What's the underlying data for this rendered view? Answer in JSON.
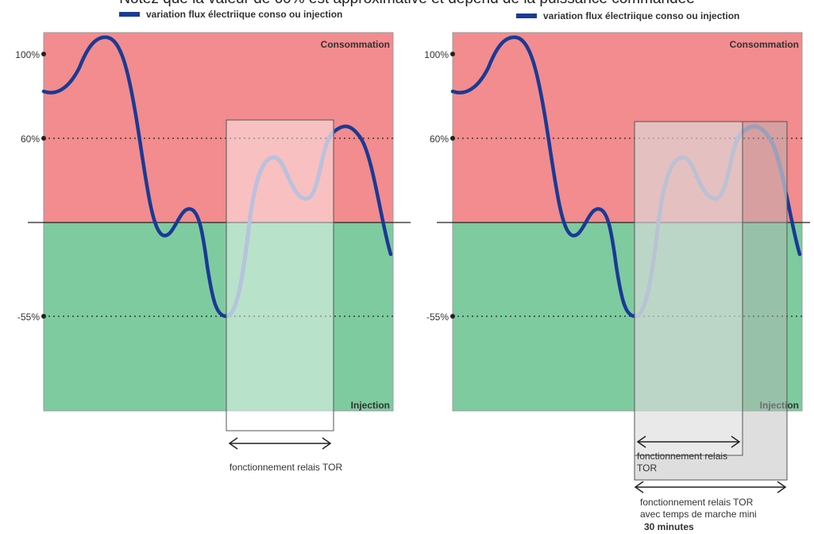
{
  "top_text": "Notez que la valeur de 60% est approximative et dépend de la puissance commandée",
  "legend_label": "variation flux électriique conso ou injection",
  "zone_consumption": "Consommation",
  "zone_injection": "Injection",
  "level_labels": {
    "high": "100%",
    "threshold_on": "60%",
    "threshold_off": "-55%"
  },
  "left_panel": {
    "relay_label": "fonctionnement relais TOR"
  },
  "right_panel": {
    "relay_label_line1": "fonctionnement relais",
    "relay_label_line2": "TOR",
    "min_run_line1": "fonctionnement relais TOR",
    "min_run_line2": "avec temps de marche mini",
    "min_run_duration": "30 minutes"
  },
  "colors": {
    "consumption": "#f28c8e",
    "injection": "#7ecb9f",
    "curve": "#1a3a95",
    "curve_faded": "#7d93c6"
  }
}
